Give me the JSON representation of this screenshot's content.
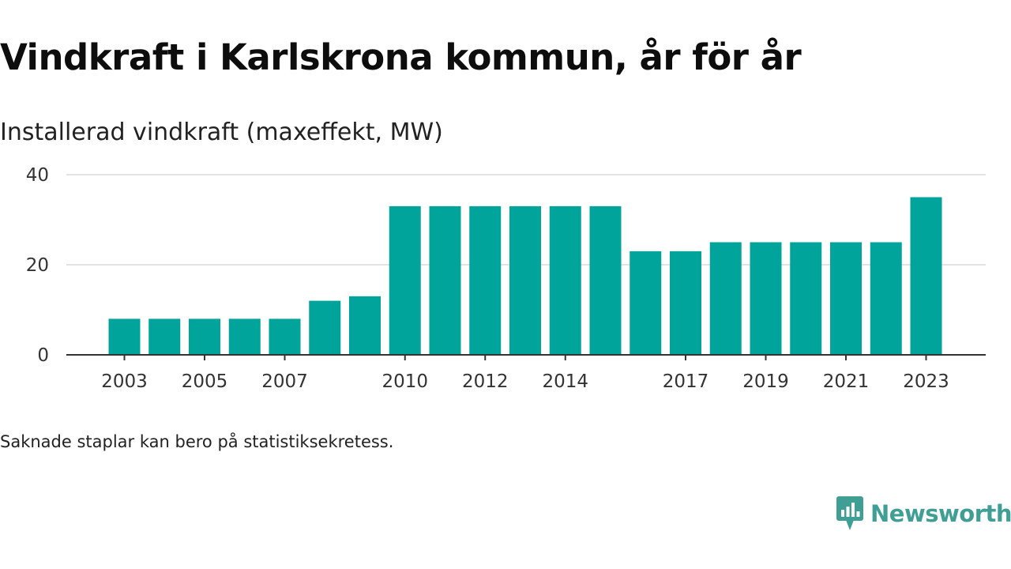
{
  "chart_data": {
    "type": "bar",
    "title": "Vindkraft i Karlskrona kommun, år för år",
    "subtitle": "Installerad vindkraft (maxeffekt, MW)",
    "categories": [
      2003,
      2004,
      2005,
      2006,
      2007,
      2008,
      2009,
      2010,
      2011,
      2012,
      2013,
      2014,
      2015,
      2016,
      2017,
      2018,
      2019,
      2020,
      2021,
      2022,
      2023
    ],
    "values": [
      8,
      8,
      8,
      8,
      8,
      12,
      13,
      33,
      33,
      33,
      33,
      33,
      33,
      23,
      23,
      25,
      25,
      25,
      25,
      25,
      35
    ],
    "x_tick_labels": [
      "2003",
      "2005",
      "2007",
      "2010",
      "2012",
      "2014",
      "2017",
      "2019",
      "2021",
      "2023"
    ],
    "y_ticks": [
      0,
      20,
      40
    ],
    "ylim": [
      0,
      40
    ],
    "grid": true,
    "bar_color": "#00a49a",
    "note": "Saknade staplar kan bero på statistiksekretess."
  },
  "brand": {
    "name": "Newsworthy",
    "icon": "newsworthy-logo-icon",
    "color": "#3f9f94"
  }
}
